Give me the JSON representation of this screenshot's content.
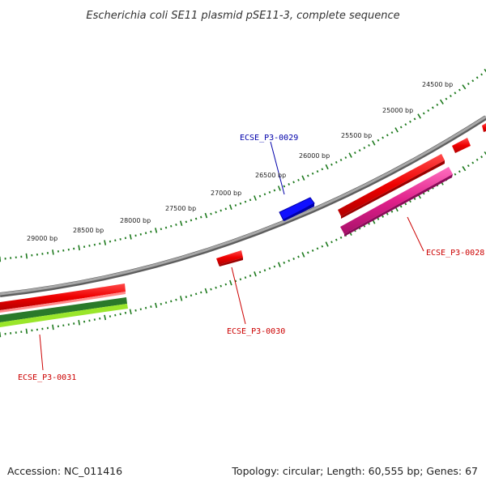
{
  "title": "Escherichia coli SE11 plasmid pSE11-3, complete sequence",
  "footer": {
    "accession": "Accession: NC_011416",
    "summary": "Topology: circular; Length: 60,555 bp; Genes: 67"
  },
  "tick_labels": [
    "24500 bp",
    "25000 bp",
    "25500 bp",
    "26000 bp",
    "26500 bp",
    "27000 bp",
    "27500 bp",
    "28000 bp",
    "28500 bp",
    "29000 bp"
  ],
  "gene_labels": {
    "ecse_p3_0028": "ECSE_P3-0028",
    "ecse_p3_0029": "ECSE_P3-0029",
    "ecse_p3_0030": "ECSE_P3-0030",
    "ecse_p3_0031": "ECSE_P3-0031"
  },
  "colors": {
    "backbone": "#8a8a8a",
    "tick": "#1e7a1e",
    "forward_cds": "#0000ee",
    "reverse_cds": "#ee0000",
    "reverse_other": "#e0208a",
    "dark_green": "#2a7a2a",
    "light_green": "#9ae62a",
    "label_blue": "#0000aa",
    "label_red": "#cc0000"
  }
}
